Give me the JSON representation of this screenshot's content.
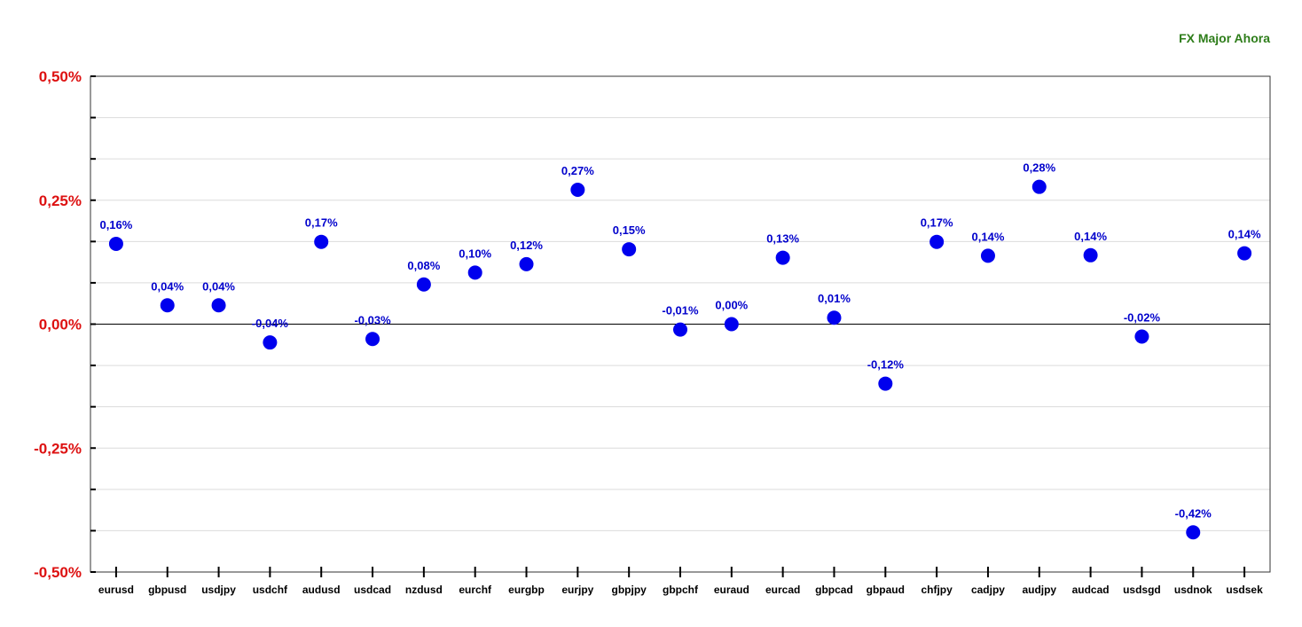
{
  "chart_data": {
    "type": "scatter",
    "title": "FX Major Ahora",
    "xlabel": "",
    "ylabel": "",
    "ylim": [
      -0.5,
      0.5
    ],
    "yticks": [
      {
        "value": 0.5,
        "label": "0,50%"
      },
      {
        "value": 0.25,
        "label": "0,25%"
      },
      {
        "value": 0.0,
        "label": "0,00%"
      },
      {
        "value": -0.25,
        "label": "-0,25%"
      },
      {
        "value": -0.5,
        "label": "-0,50%"
      }
    ],
    "grid": true,
    "legend": "none",
    "categories": [
      "eurusd",
      "gbpusd",
      "usdjpy",
      "usdchf",
      "audusd",
      "usdcad",
      "nzdusd",
      "eurchf",
      "eurgbp",
      "eurjpy",
      "gbpjpy",
      "gbpchf",
      "euraud",
      "eurcad",
      "gbpcad",
      "gbpaud",
      "chfjpy",
      "cadjpy",
      "audjpy",
      "audcad",
      "usdsgd",
      "usdnok",
      "usdsek"
    ],
    "values": [
      0.162,
      0.038,
      0.038,
      -0.037,
      0.166,
      -0.03,
      0.08,
      0.104,
      0.121,
      0.271,
      0.151,
      -0.011,
      0.0,
      0.134,
      0.013,
      -0.12,
      0.166,
      0.138,
      0.277,
      0.139,
      -0.025,
      -0.42,
      0.143
    ],
    "data_labels": [
      "0,16%",
      "0,04%",
      "0,04%",
      "-0,04%",
      "0,17%",
      "-0,03%",
      "0,08%",
      "0,10%",
      "0,12%",
      "0,27%",
      "0,15%",
      "-0,01%",
      "0,00%",
      "0,13%",
      "0,01%",
      "-0,12%",
      "0,17%",
      "0,14%",
      "0,28%",
      "0,14%",
      "-0,02%",
      "-0,42%",
      "0,14%"
    ],
    "colors": {
      "point": "#0000ee",
      "data_label": "#0000cc",
      "y_tick_label": "#dd1111",
      "title": "#2e7d1a",
      "gridline": "#dcdcdc",
      "zero_line": "#000000"
    }
  }
}
